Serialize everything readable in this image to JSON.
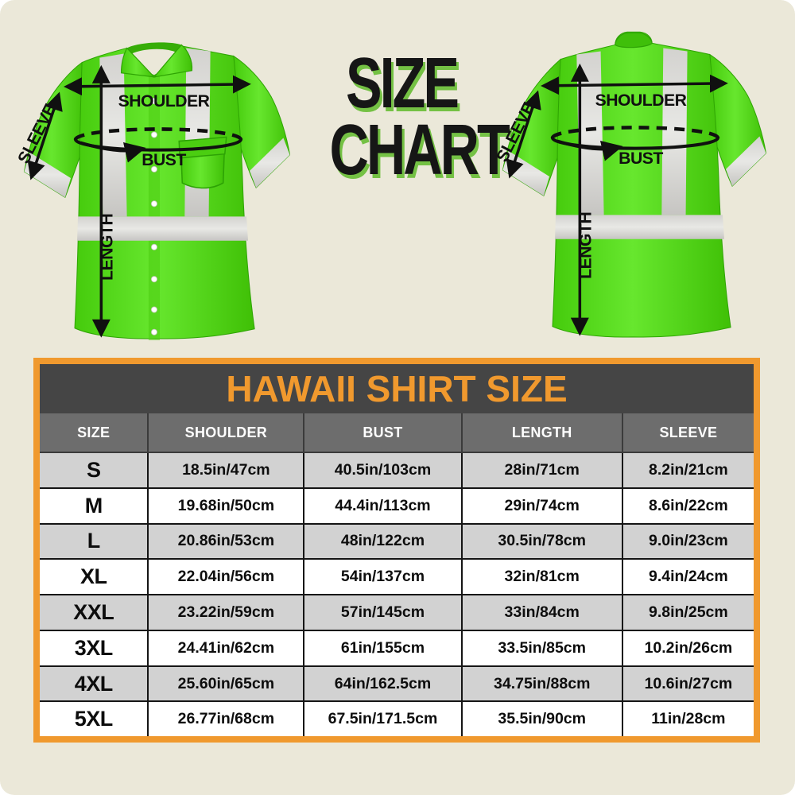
{
  "heading": {
    "line1": "SIZE",
    "line2": "CHART"
  },
  "shirt_labels": {
    "shoulder": "SHOULDER",
    "bust": "BUST",
    "sleeve": "SLEEVE",
    "length": "LENGTH"
  },
  "table": {
    "title": "HAWAII SHIRT SIZE"
  },
  "chart_data": {
    "type": "table",
    "title": "HAWAII SHIRT SIZE",
    "columns": [
      "SIZE",
      "SHOULDER",
      "BUST",
      "LENGTH",
      "SLEEVE"
    ],
    "rows": [
      [
        "S",
        "18.5in/47cm",
        "40.5in/103cm",
        "28in/71cm",
        "8.2in/21cm"
      ],
      [
        "M",
        "19.68in/50cm",
        "44.4in/113cm",
        "29in/74cm",
        "8.6in/22cm"
      ],
      [
        "L",
        "20.86in/53cm",
        "48in/122cm",
        "30.5in/78cm",
        "9.0in/23cm"
      ],
      [
        "XL",
        "22.04in/56cm",
        "54in/137cm",
        "32in/81cm",
        "9.4in/24cm"
      ],
      [
        "XXL",
        "23.22in/59cm",
        "57in/145cm",
        "33in/84cm",
        "9.8in/25cm"
      ],
      [
        "3XL",
        "24.41in/62cm",
        "61in/155cm",
        "33.5in/85cm",
        "10.2in/26cm"
      ],
      [
        "4XL",
        "25.60in/65cm",
        "64in/162.5cm",
        "34.75in/88cm",
        "10.6in/27cm"
      ],
      [
        "5XL",
        "26.77in/68cm",
        "67.5in/171.5cm",
        "35.5in/90cm",
        "11in/28cm"
      ]
    ],
    "legend_position": "none",
    "grid": true
  },
  "colors": {
    "bg": "#ebe8d9",
    "orange": "#f0992e",
    "dark": "#454545",
    "hdr": "#6d6d6d",
    "rowalt": "#d2d2d2",
    "shadow-green": "#74c144",
    "shirt-green": "#55d916",
    "stripe-gray": "#d9d8d4",
    "ink": "#101010"
  }
}
